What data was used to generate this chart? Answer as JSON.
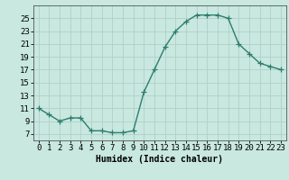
{
  "x": [
    0,
    1,
    2,
    3,
    4,
    5,
    6,
    7,
    8,
    9,
    10,
    11,
    12,
    13,
    14,
    15,
    16,
    17,
    18,
    19,
    20,
    21,
    22,
    23
  ],
  "y": [
    11,
    10,
    9,
    9.5,
    9.5,
    7.5,
    7.5,
    7.2,
    7.2,
    7.5,
    13.5,
    17,
    20.5,
    23,
    24.5,
    25.5,
    25.5,
    25.5,
    25,
    21,
    19.5,
    18,
    17.5,
    17
  ],
  "line_color": "#2e7d6e",
  "marker": "+",
  "marker_size": 4,
  "bg_color": "#c8e8e0",
  "grid_color": "#b0d0c8",
  "xlabel": "Humidex (Indice chaleur)",
  "xlim": [
    -0.5,
    23.5
  ],
  "ylim": [
    6,
    27
  ],
  "yticks": [
    7,
    9,
    11,
    13,
    15,
    17,
    19,
    21,
    23,
    25
  ],
  "xticks": [
    0,
    1,
    2,
    3,
    4,
    5,
    6,
    7,
    8,
    9,
    10,
    11,
    12,
    13,
    14,
    15,
    16,
    17,
    18,
    19,
    20,
    21,
    22,
    23
  ],
  "xlabel_fontsize": 7,
  "tick_fontsize": 6.5,
  "line_width": 1.0
}
